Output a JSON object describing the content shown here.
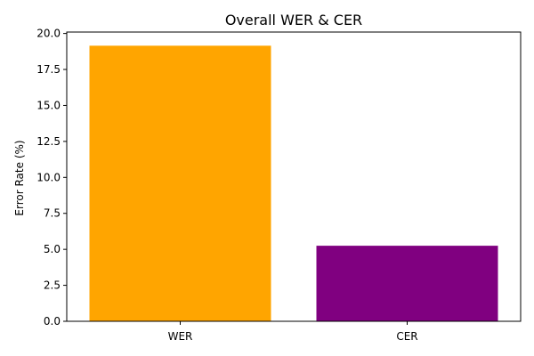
{
  "chart_data": {
    "type": "bar",
    "title": "Overall WER & CER",
    "xlabel": "",
    "ylabel": "Error Rate (%)",
    "categories": [
      "WER",
      "CER"
    ],
    "values": [
      19.15,
      5.25
    ],
    "bar_colors": [
      "#ffa500",
      "#800080"
    ],
    "ylim": [
      0,
      20.1
    ],
    "yticks": [
      "0.0",
      "2.5",
      "5.0",
      "7.5",
      "10.0",
      "12.5",
      "15.0",
      "17.5",
      "20.0"
    ],
    "grid": false,
    "legend": "none"
  }
}
